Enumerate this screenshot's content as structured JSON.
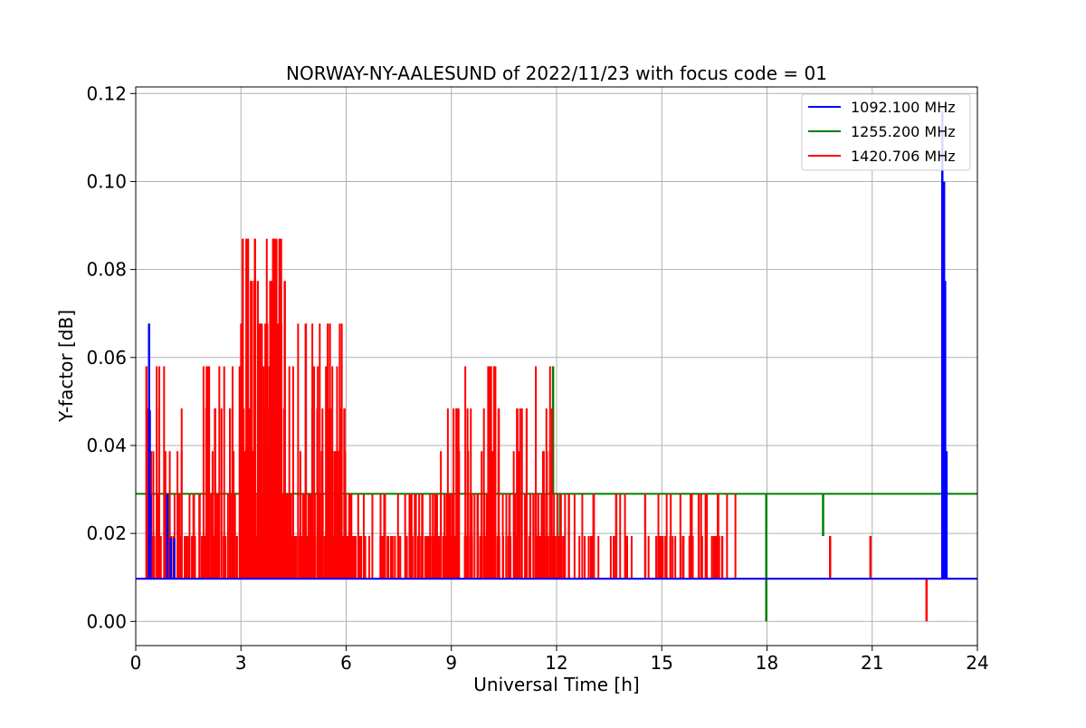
{
  "chart_data": {
    "type": "line",
    "title": "NORWAY-NY-AALESUND of 2022/11/23 with focus code = 01",
    "xlabel": "Universal Time [h]",
    "ylabel": "Y-factor [dB]",
    "xlim": [
      0,
      24
    ],
    "ylim": [
      -0.0055,
      0.1215
    ],
    "xticks": [
      0,
      3,
      6,
      9,
      12,
      15,
      18,
      21,
      24
    ],
    "xtick_labels": [
      "0",
      "3",
      "6",
      "9",
      "12",
      "15",
      "18",
      "21",
      "24"
    ],
    "yticks": [
      0.0,
      0.02,
      0.04,
      0.06,
      0.08,
      0.1,
      0.12
    ],
    "ytick_labels": [
      "0.00",
      "0.02",
      "0.04",
      "0.06",
      "0.08",
      "0.10",
      "0.12"
    ],
    "grid": true,
    "legend_position": "top-right",
    "series": [
      {
        "name": "1092.100 MHz",
        "color": "#0000ff",
        "baseline": 0.0097,
        "spikes": [
          [
            0.38,
            0.0677
          ],
          [
            0.4,
            0.048
          ],
          [
            0.42,
            0.029
          ],
          [
            0.9,
            0.029
          ],
          [
            1.0,
            0.019
          ],
          [
            1.1,
            0.019
          ],
          [
            23.0,
            0.116
          ],
          [
            23.05,
            0.1
          ],
          [
            23.08,
            0.0774
          ],
          [
            23.12,
            0.0387
          ]
        ]
      },
      {
        "name": "1255.200 MHz",
        "color": "#008000",
        "baseline": 0.029,
        "spikes": [
          [
            0.95,
            0.0097
          ],
          [
            11.9,
            0.058
          ],
          [
            12.1,
            0.0194
          ],
          [
            17.98,
            0.0
          ],
          [
            19.6,
            0.0194
          ]
        ]
      },
      {
        "name": "1420.706 MHz",
        "color": "#ff0000",
        "baseline": 0.0097,
        "clusters": [
          {
            "x_start": 0.3,
            "x_end": 3.0,
            "max": 0.058,
            "count": 110
          },
          {
            "x_start": 3.0,
            "x_end": 4.2,
            "max": 0.087,
            "count": 140
          },
          {
            "x_start": 4.2,
            "x_end": 6.0,
            "max": 0.068,
            "count": 120
          },
          {
            "x_start": 6.0,
            "x_end": 8.7,
            "max": 0.029,
            "count": 90
          },
          {
            "x_start": 8.7,
            "x_end": 12.0,
            "max": 0.058,
            "count": 130
          },
          {
            "x_start": 12.0,
            "x_end": 17.1,
            "max": 0.029,
            "count": 75
          }
        ],
        "spikes": [
          [
            3.05,
            0.087
          ],
          [
            3.2,
            0.087
          ],
          [
            3.4,
            0.087
          ],
          [
            4.1,
            0.087
          ],
          [
            4.25,
            0.0774
          ],
          [
            2.05,
            0.058
          ],
          [
            10.25,
            0.058
          ],
          [
            4.85,
            0.0677
          ],
          [
            9.2,
            0.0484
          ],
          [
            10.35,
            0.0484
          ],
          [
            5.95,
            0.0484
          ],
          [
            19.8,
            0.0194
          ],
          [
            20.95,
            0.0194
          ],
          [
            22.55,
            0.0
          ],
          [
            15.85,
            0.029
          ],
          [
            13.7,
            0.029
          ]
        ]
      }
    ]
  }
}
